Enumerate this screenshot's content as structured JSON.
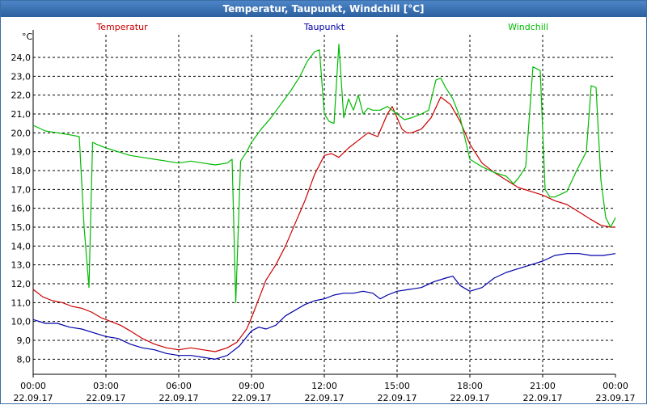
{
  "window": {
    "title": "Temperatur, Taupunkt, Windchill [°C]"
  },
  "chart_data": {
    "type": "line",
    "title": "Temperatur, Taupunkt, Windchill [°C]",
    "ylabel": "°C",
    "ylim": [
      7.2,
      25.2
    ],
    "yticks": [
      "8,0",
      "9,0",
      "10,0",
      "11,0",
      "12,0",
      "13,0",
      "14,0",
      "15,0",
      "16,0",
      "17,0",
      "18,0",
      "19,0",
      "20,0",
      "21,0",
      "22,0",
      "23,0",
      "24,0"
    ],
    "xlim": [
      0,
      24
    ],
    "xticks": [
      {
        "time": "00:00",
        "date": "22.09.17"
      },
      {
        "time": "03:00",
        "date": "22.09.17"
      },
      {
        "time": "06:00",
        "date": "22.09.17"
      },
      {
        "time": "09:00",
        "date": "22.09.17"
      },
      {
        "time": "12:00",
        "date": "22.09.17"
      },
      {
        "time": "15:00",
        "date": "22.09.17"
      },
      {
        "time": "18:00",
        "date": "22.09.17"
      },
      {
        "time": "21:00",
        "date": "22.09.17"
      },
      {
        "time": "00:00",
        "date": "23.09.17"
      }
    ],
    "grid": true,
    "series": [
      {
        "name": "Temperatur",
        "color": "#cc0000",
        "x": [
          0,
          0.4,
          0.8,
          1.2,
          1.6,
          2.0,
          2.4,
          2.8,
          3.2,
          3.6,
          4.0,
          4.5,
          5.0,
          5.5,
          6.0,
          6.5,
          7.0,
          7.5,
          8.0,
          8.4,
          8.8,
          9.0,
          9.3,
          9.6,
          10.0,
          10.4,
          10.8,
          11.2,
          11.6,
          12.0,
          12.3,
          12.6,
          13.0,
          13.4,
          13.8,
          14.2,
          14.6,
          14.8,
          15.0,
          15.2,
          15.4,
          15.6,
          16.0,
          16.4,
          16.8,
          17.2,
          17.6,
          18.0,
          18.5,
          19.0,
          19.5,
          20.0,
          20.5,
          21.0,
          21.5,
          22.0,
          22.5,
          23.0,
          23.4,
          23.8,
          24.0
        ],
        "values": [
          11.7,
          11.3,
          11.1,
          11.0,
          10.8,
          10.7,
          10.5,
          10.2,
          10.0,
          9.8,
          9.5,
          9.1,
          8.8,
          8.6,
          8.5,
          8.6,
          8.5,
          8.4,
          8.6,
          8.9,
          9.6,
          10.2,
          11.2,
          12.2,
          13.0,
          14.0,
          15.2,
          16.4,
          17.8,
          18.8,
          18.9,
          18.7,
          19.2,
          19.6,
          20.0,
          19.8,
          21.0,
          21.4,
          20.8,
          20.2,
          20.0,
          20.0,
          20.2,
          20.8,
          21.9,
          21.5,
          20.6,
          19.4,
          18.4,
          17.9,
          17.5,
          17.1,
          16.9,
          16.7,
          16.4,
          16.2,
          15.8,
          15.4,
          15.1,
          15.0,
          15.0
        ]
      },
      {
        "name": "Taupunkt",
        "color": "#0000aa",
        "x": [
          0,
          0.5,
          1.0,
          1.5,
          2.0,
          2.5,
          3.0,
          3.5,
          4.0,
          4.5,
          5.0,
          5.5,
          6.0,
          6.5,
          7.0,
          7.5,
          8.0,
          8.5,
          9.0,
          9.3,
          9.6,
          10.0,
          10.4,
          10.8,
          11.2,
          11.6,
          12.0,
          12.4,
          12.8,
          13.2,
          13.6,
          14.0,
          14.3,
          14.6,
          15.0,
          15.5,
          16.0,
          16.5,
          17.0,
          17.3,
          17.6,
          18.0,
          18.5,
          19.0,
          19.5,
          20.0,
          20.5,
          21.0,
          21.5,
          22.0,
          22.5,
          23.0,
          23.5,
          24.0
        ],
        "values": [
          10.1,
          9.9,
          9.9,
          9.7,
          9.6,
          9.4,
          9.2,
          9.1,
          8.8,
          8.6,
          8.5,
          8.3,
          8.2,
          8.2,
          8.1,
          8.0,
          8.2,
          8.7,
          9.5,
          9.7,
          9.6,
          9.8,
          10.3,
          10.6,
          10.9,
          11.1,
          11.2,
          11.4,
          11.5,
          11.5,
          11.6,
          11.5,
          11.2,
          11.4,
          11.6,
          11.7,
          11.8,
          12.1,
          12.3,
          12.4,
          11.9,
          11.6,
          11.8,
          12.3,
          12.6,
          12.8,
          13.0,
          13.2,
          13.5,
          13.6,
          13.6,
          13.5,
          13.5,
          13.6
        ]
      },
      {
        "name": "Windchill",
        "color": "#00bb00",
        "x": [
          0,
          0.5,
          1.0,
          1.5,
          1.9,
          2.1,
          2.3,
          2.45,
          2.6,
          3.0,
          3.5,
          4.0,
          4.5,
          5.0,
          5.5,
          6.0,
          6.5,
          7.0,
          7.5,
          8.0,
          8.2,
          8.35,
          8.55,
          8.8,
          9.0,
          9.4,
          9.8,
          10.2,
          10.6,
          11.0,
          11.3,
          11.6,
          11.8,
          12.0,
          12.2,
          12.4,
          12.6,
          12.8,
          13.0,
          13.2,
          13.4,
          13.6,
          13.8,
          14.0,
          14.3,
          14.6,
          15.0,
          15.3,
          15.6,
          16.0,
          16.3,
          16.6,
          16.8,
          17.0,
          17.3,
          17.6,
          18.0,
          18.5,
          19.0,
          19.5,
          19.8,
          20.0,
          20.3,
          20.6,
          20.9,
          21.1,
          21.3,
          21.5,
          22.0,
          22.4,
          22.8,
          23.0,
          23.2,
          23.4,
          23.6,
          23.8,
          24.0
        ],
        "values": [
          20.4,
          20.1,
          20.0,
          19.9,
          19.8,
          15.0,
          11.8,
          19.5,
          19.4,
          19.2,
          19.0,
          18.8,
          18.7,
          18.6,
          18.5,
          18.4,
          18.5,
          18.4,
          18.3,
          18.4,
          18.6,
          11.0,
          18.5,
          19.0,
          19.5,
          20.2,
          20.8,
          21.5,
          22.2,
          23.0,
          23.8,
          24.3,
          24.4,
          21.0,
          20.6,
          20.5,
          24.7,
          20.8,
          21.8,
          21.2,
          22.0,
          21.0,
          21.3,
          21.2,
          21.2,
          21.4,
          21.0,
          20.7,
          20.8,
          21.0,
          21.2,
          22.8,
          22.9,
          22.4,
          21.8,
          20.8,
          18.6,
          18.2,
          17.9,
          17.7,
          17.3,
          17.6,
          18.2,
          23.5,
          23.3,
          17.0,
          16.6,
          16.6,
          16.9,
          18.0,
          19.0,
          22.5,
          22.4,
          17.5,
          15.5,
          15.0,
          15.5
        ]
      }
    ]
  }
}
